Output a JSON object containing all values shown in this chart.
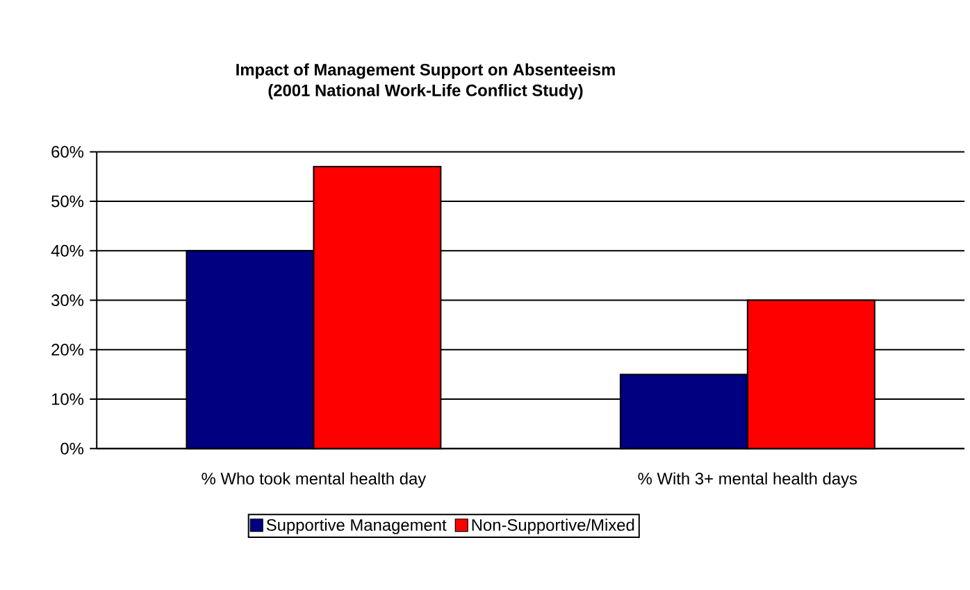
{
  "chart_data": {
    "type": "bar",
    "title": "Impact of Management Support on Absenteeism\n(2001 National Work-Life Conflict Study)",
    "categories": [
      "% Who took mental health day",
      "% With 3+ mental health days"
    ],
    "series": [
      {
        "name": "Supportive Management",
        "color": "#000080",
        "values": [
          40,
          15
        ]
      },
      {
        "name": "Non-Supportive/Mixed",
        "color": "#ff0000",
        "values": [
          57,
          30
        ]
      }
    ],
    "ylim": [
      0,
      60
    ],
    "yticks": [
      {
        "value": 0,
        "label": "0%"
      },
      {
        "value": 10,
        "label": "10%"
      },
      {
        "value": 20,
        "label": "20%"
      },
      {
        "value": 30,
        "label": "30%"
      },
      {
        "value": 40,
        "label": "40%"
      },
      {
        "value": 50,
        "label": "50%"
      },
      {
        "value": 60,
        "label": "60%"
      }
    ],
    "grid": "y",
    "legend": "bottom"
  }
}
